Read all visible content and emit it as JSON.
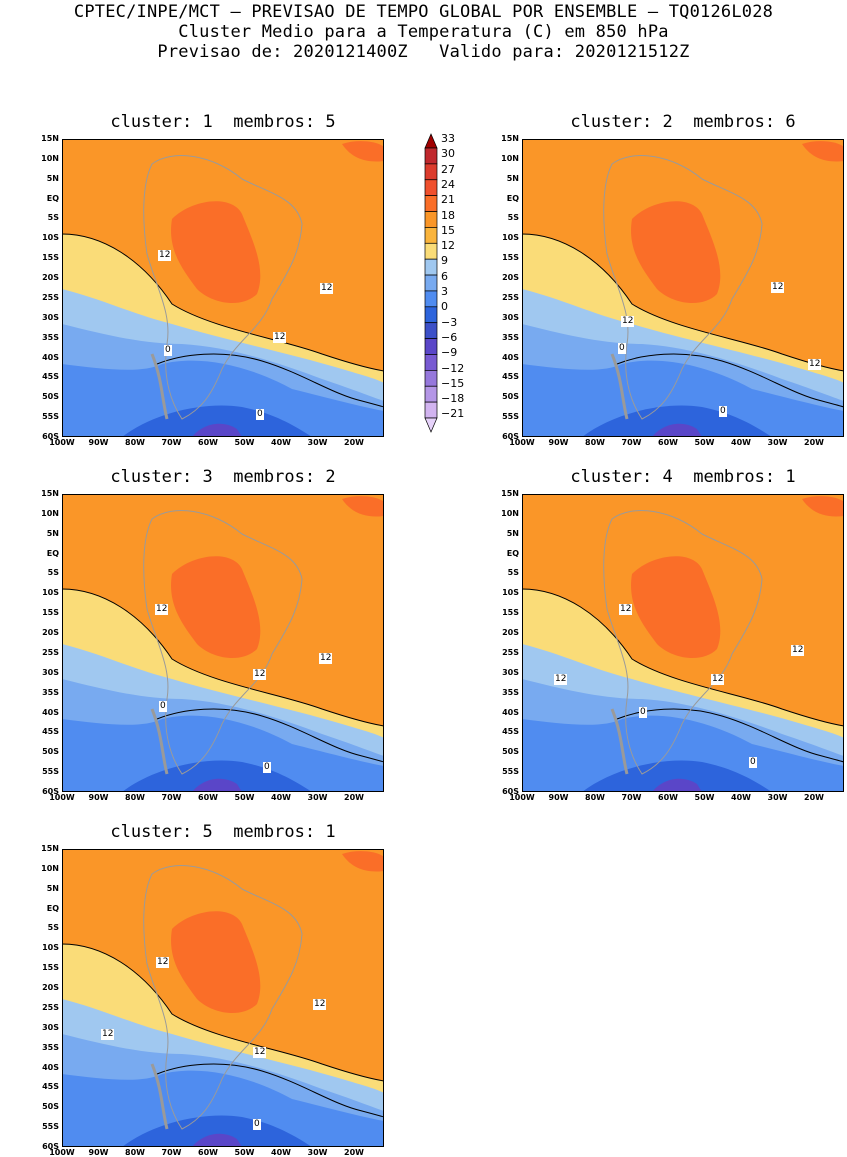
{
  "header": {
    "line1": "CPTEC/INPE/MCT — PREVISAO DE TEMPO GLOBAL POR ENSEMBLE — TQ0126L028",
    "line2": "Cluster Medio para a Temperatura (C) em 850 hPa",
    "line3": "Previsao de: 2020121400Z   Valido para: 2020121512Z"
  },
  "axes": {
    "lat_labels": [
      "15N",
      "10N",
      "5N",
      "EQ",
      "5S",
      "10S",
      "15S",
      "20S",
      "25S",
      "30S",
      "35S",
      "40S",
      "45S",
      "50S",
      "55S",
      "60S"
    ],
    "lon_labels": [
      "100W",
      "90W",
      "80W",
      "70W",
      "60W",
      "50W",
      "40W",
      "30W",
      "20W"
    ]
  },
  "colorbar": {
    "labels": [
      "33",
      "30",
      "27",
      "24",
      "21",
      "18",
      "15",
      "12",
      "9",
      "6",
      "3",
      "0",
      "−3",
      "−6",
      "−9",
      "−12",
      "−15",
      "−18",
      "−21"
    ],
    "colors": [
      "#a00000",
      "#c0282d",
      "#dc3c2d",
      "#f0502d",
      "#fa6e28",
      "#fa9628",
      "#fab43c",
      "#fadc78",
      "#a0c8f0",
      "#78aaf0",
      "#508cf0",
      "#2d64dc",
      "#3c50c8",
      "#5a46c8",
      "#785ad2",
      "#9678dc",
      "#b496e6",
      "#d2b4f0",
      "#e6d2fa"
    ]
  },
  "panels": [
    {
      "cluster_label": "cluster:",
      "cluster": "1",
      "members_label": "membros:",
      "members": "5",
      "contour_labels": [
        {
          "text": "12"
        },
        {
          "text": "12"
        },
        {
          "text": "12"
        },
        {
          "text": "0"
        },
        {
          "text": "0"
        }
      ]
    },
    {
      "cluster_label": "cluster:",
      "cluster": "2",
      "members_label": "membros:",
      "members": "6",
      "contour_labels": [
        {
          "text": "12"
        },
        {
          "text": "12"
        },
        {
          "text": "12"
        },
        {
          "text": "0"
        },
        {
          "text": "0"
        }
      ]
    },
    {
      "cluster_label": "cluster:",
      "cluster": "3",
      "members_label": "membros:",
      "members": "2",
      "contour_labels": [
        {
          "text": "12"
        },
        {
          "text": "12"
        },
        {
          "text": "12"
        },
        {
          "text": "0"
        },
        {
          "text": "0"
        }
      ]
    },
    {
      "cluster_label": "cluster:",
      "cluster": "4",
      "members_label": "membros:",
      "members": "1",
      "contour_labels": [
        {
          "text": "12"
        },
        {
          "text": "12"
        },
        {
          "text": "12"
        },
        {
          "text": "12"
        },
        {
          "text": "0"
        },
        {
          "text": "0"
        }
      ]
    },
    {
      "cluster_label": "cluster:",
      "cluster": "5",
      "members_label": "membros:",
      "members": "1",
      "contour_labels": [
        {
          "text": "12"
        },
        {
          "text": "12"
        },
        {
          "text": "12"
        },
        {
          "text": "12"
        },
        {
          "text": "0"
        }
      ]
    }
  ]
}
